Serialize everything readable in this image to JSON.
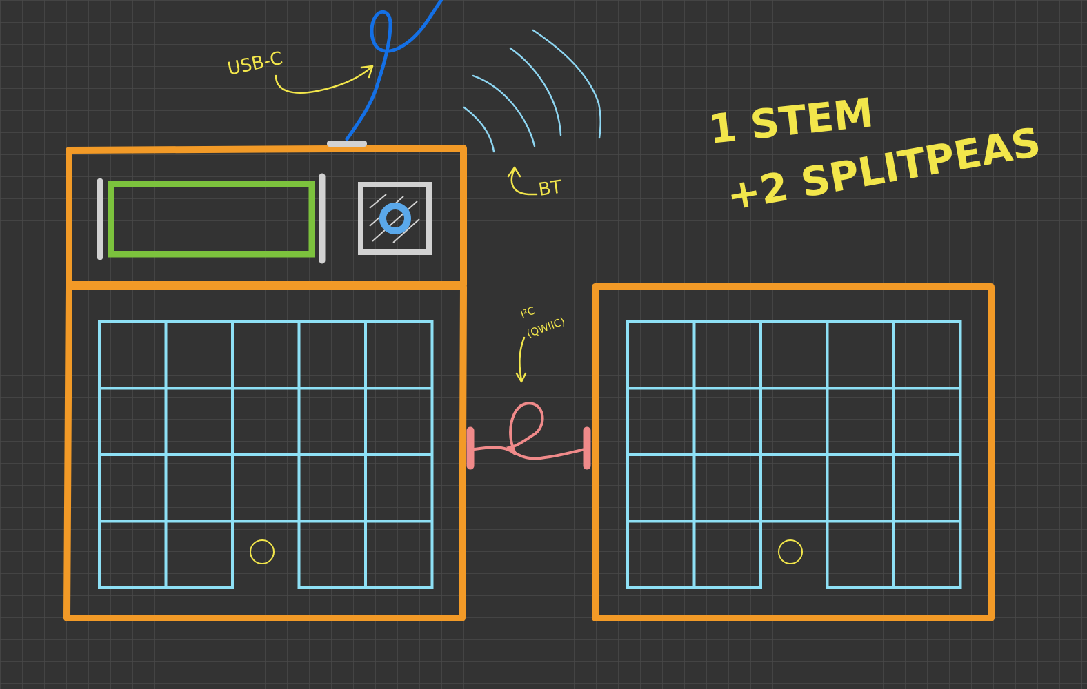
{
  "colors": {
    "background": "#333333",
    "grid": "#4a4a4a",
    "frame": "#f29a27",
    "keys": "#8ee0f5",
    "display": "#7cc23d",
    "hardware_gray": "#d2d2d2",
    "usb_cable": "#1470e6",
    "bt_waves": "#8ed6f2",
    "i2c_cable": "#f08a8a",
    "annotation": "#f2e64b",
    "trackball": "#5aa8ea"
  },
  "annotations": {
    "usb_label": "USB-C",
    "bt_label": "BT",
    "i2c_label_line1": "I²C",
    "i2c_label_line2": "(QWIIC)",
    "summary_line1": "1 STEM",
    "summary_line2": "+2 SPLITPEAS"
  },
  "boards": {
    "stem": {
      "name": "stem",
      "display": "oled-display",
      "trackball": "trackball-icon",
      "grid_rows": 4,
      "grid_cols": 5,
      "thumb_gap_col": 2
    },
    "splitpea": {
      "name": "splitpea",
      "grid_rows": 4,
      "grid_cols": 5,
      "thumb_gap_col": 2
    }
  }
}
